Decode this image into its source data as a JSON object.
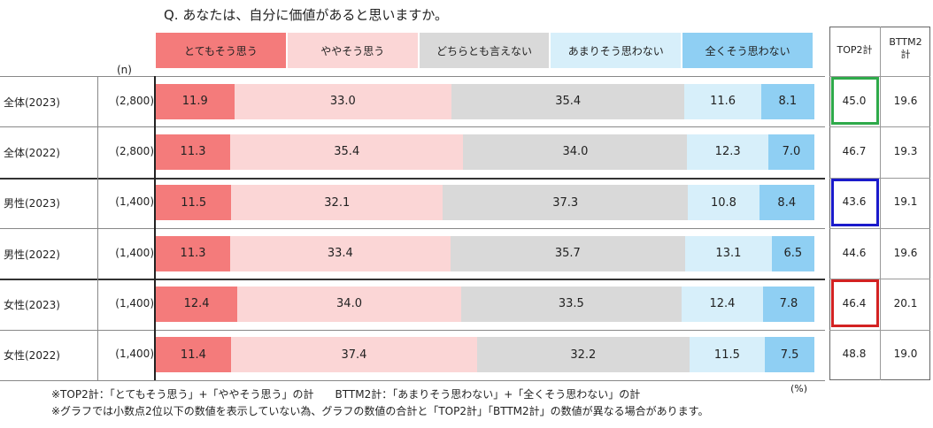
{
  "title": "Q. あなたは、自分に価値があると思いますか。",
  "n_label": "(n)",
  "unit_label": "(%)",
  "colors": {
    "c1": "#f47b7b",
    "c2": "#fbd6d6",
    "c3": "#d9d9d9",
    "c4": "#d7effa",
    "c5": "#8fcff3",
    "highlight_2023_all": "#2eaa4a",
    "highlight_2023_male": "#1a1acb",
    "highlight_2023_female": "#d32222"
  },
  "table_headers": {
    "top2": "TOP2計",
    "bttm2_line1": "BTTM2",
    "bttm2_line2": "計"
  },
  "notes": [
    "※TOP2計：「とてもそう思う」+「ややそう思う」の計　　BTTM2計：「あまりそう思わない」+「全くそう思わない」の計",
    "※グラフでは小数点2位以下の数値を表示していない為、グラフの数値の合計と「TOP2計」「BTTM2計」の数値が異なる場合があります。"
  ],
  "chart_data": {
    "type": "bar",
    "stacked": true,
    "orientation": "horizontal",
    "title": "Q. あなたは、自分に価値があると思いますか。",
    "xlim": [
      0,
      100
    ],
    "categories": [
      "全体(2023)",
      "全体(2022)",
      "男性(2023)",
      "男性(2022)",
      "女性(2023)",
      "女性(2022)"
    ],
    "n": [
      "(2,800)",
      "(2,800)",
      "(1,400)",
      "(1,400)",
      "(1,400)",
      "(1,400)"
    ],
    "series": [
      {
        "name": "とてもそう思う",
        "values": [
          11.9,
          11.3,
          11.5,
          11.3,
          12.4,
          11.4
        ]
      },
      {
        "name": "ややそう思う",
        "values": [
          33.0,
          35.4,
          32.1,
          33.4,
          34.0,
          37.4
        ]
      },
      {
        "name": "どちらとも言えない",
        "values": [
          35.4,
          34.0,
          37.3,
          35.7,
          33.5,
          32.2
        ]
      },
      {
        "name": "あまりそう思わない",
        "values": [
          11.6,
          12.3,
          10.8,
          13.1,
          12.4,
          11.5
        ]
      },
      {
        "name": "全くそう思わない",
        "values": [
          8.1,
          7.0,
          8.4,
          6.5,
          7.8,
          7.5
        ]
      }
    ],
    "top2": [
      "45.0",
      "46.7",
      "43.6",
      "44.6",
      "46.4",
      "48.8"
    ],
    "bttm2": [
      "19.6",
      "19.3",
      "19.1",
      "19.6",
      "20.1",
      "19.0"
    ]
  }
}
